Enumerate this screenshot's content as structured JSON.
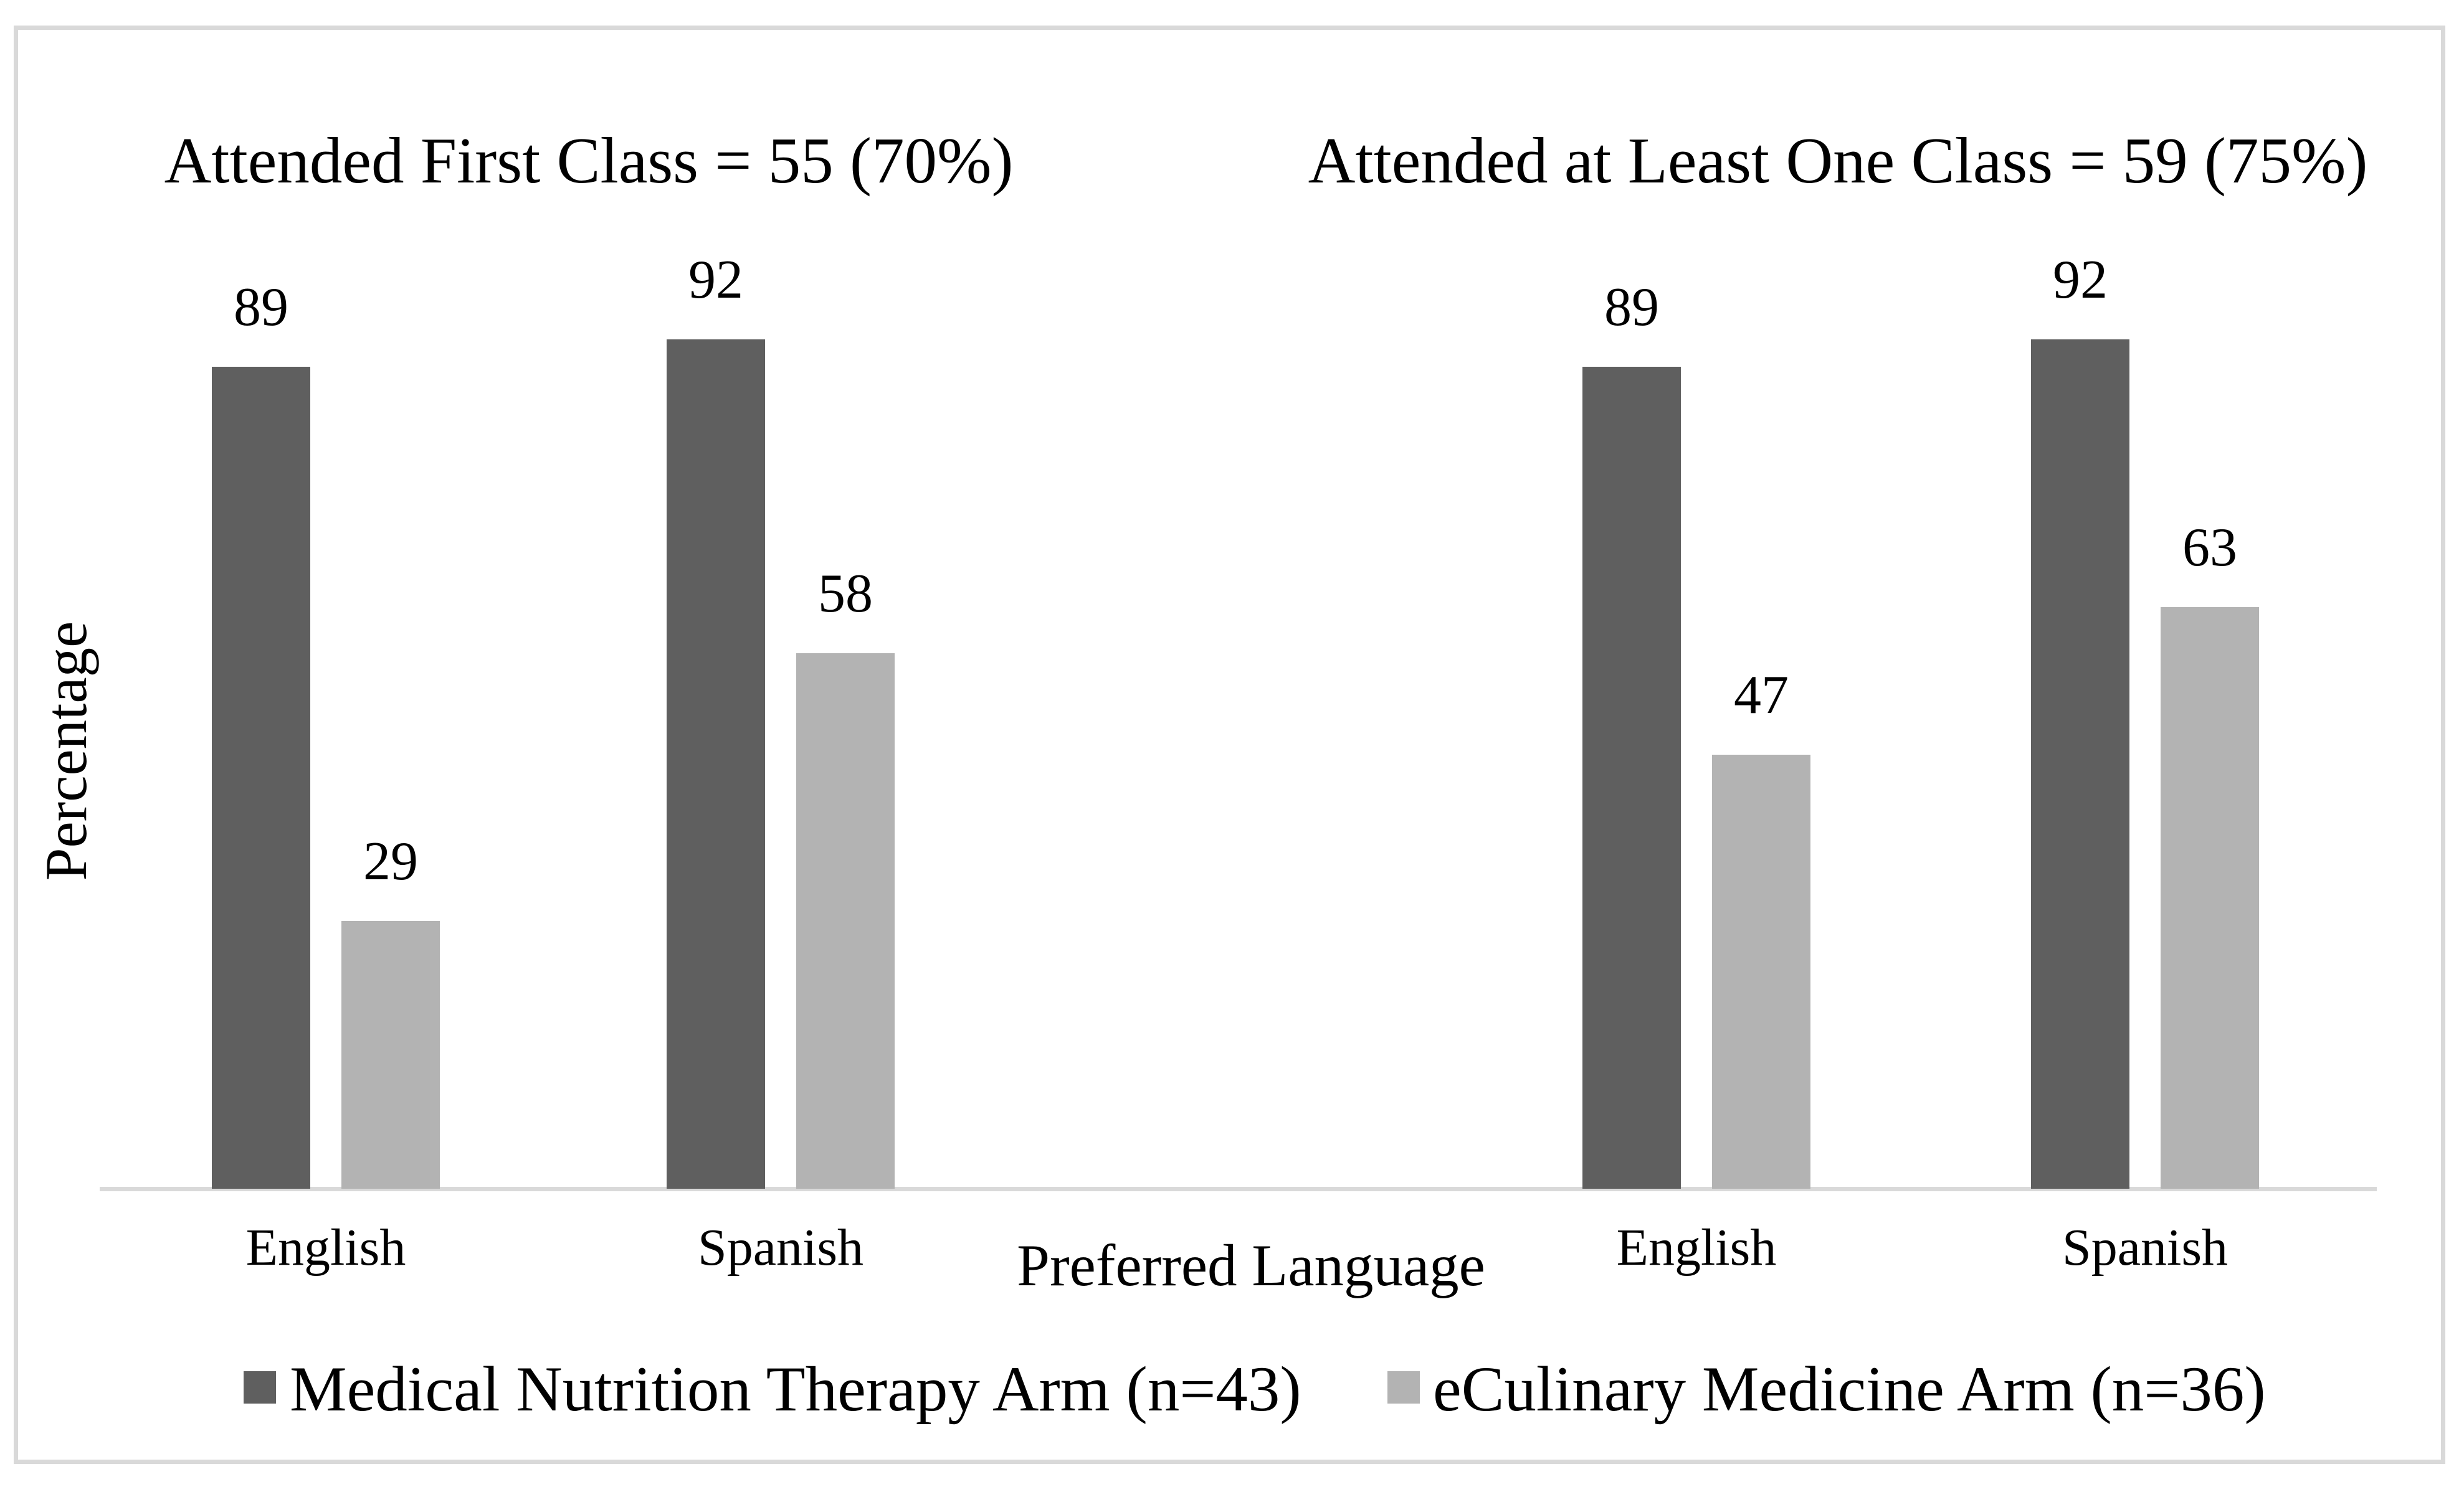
{
  "figure": {
    "background": "#ffffff",
    "border_color": "#d9d9d9"
  },
  "axes": {
    "y_label": "Percentage",
    "x_label": "Preferred Language"
  },
  "colors": {
    "dark_series": "#5f5f5f",
    "light_series": "#b3b3b3",
    "axis_line": "#d9d9d9",
    "text": "#000000"
  },
  "legend": {
    "position": "bottom",
    "items": [
      {
        "label": "Medical Nutrition Therapy Arm (n=43)",
        "color": "#5f5f5f"
      },
      {
        "label": "eCulinary Medicine Arm (n=36)",
        "color": "#b3b3b3"
      }
    ]
  },
  "chart_data": [
    {
      "type": "bar",
      "panel": "left",
      "title": "Attended First Class = 55 (70%)",
      "categories": [
        "English",
        "Spanish"
      ],
      "series": [
        {
          "name": "Medical Nutrition Therapy Arm (n=43)",
          "values": [
            89,
            92
          ]
        },
        {
          "name": "eCulinary Medicine Arm (n=36)",
          "values": [
            29,
            58
          ]
        }
      ],
      "xlabel": "Preferred Language",
      "ylabel": "Percentage",
      "ylim": [
        0,
        100
      ],
      "grid": false,
      "y_axis_ticks_visible": false,
      "bar_labels": true
    },
    {
      "type": "bar",
      "panel": "right",
      "title": "Attended at Least One Class = 59 (75%)",
      "categories": [
        "English",
        "Spanish"
      ],
      "series": [
        {
          "name": "Medical Nutrition Therapy Arm (n=43)",
          "values": [
            89,
            92
          ]
        },
        {
          "name": "eCulinary Medicine Arm (n=36)",
          "values": [
            47,
            63
          ]
        }
      ],
      "xlabel": "Preferred Language",
      "ylabel": "Percentage",
      "ylim": [
        0,
        100
      ],
      "grid": false,
      "y_axis_ticks_visible": false,
      "bar_labels": true
    }
  ]
}
